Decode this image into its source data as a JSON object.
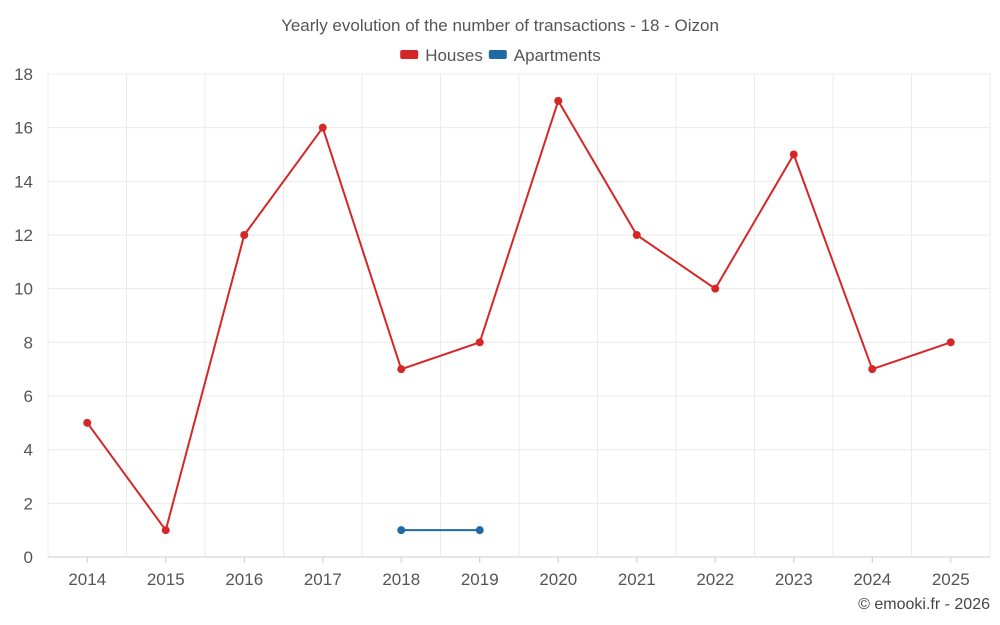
{
  "chart_data": {
    "type": "line",
    "title": "Yearly evolution of the number of transactions - 18 - Oizon",
    "xlabel": "",
    "ylabel": "",
    "categories": [
      "2014",
      "2015",
      "2016",
      "2017",
      "2018",
      "2019",
      "2020",
      "2021",
      "2022",
      "2023",
      "2024",
      "2025"
    ],
    "ylim": [
      0,
      18
    ],
    "yticks": [
      0,
      2,
      4,
      6,
      8,
      10,
      12,
      14,
      16,
      18
    ],
    "grid": true,
    "legend_position": "top-center",
    "series": [
      {
        "name": "Houses",
        "color": "#d62728",
        "values": [
          5,
          1,
          12,
          16,
          7,
          8,
          17,
          12,
          10,
          15,
          7,
          8
        ]
      },
      {
        "name": "Apartments",
        "color": "#1f6aa5",
        "values": [
          null,
          null,
          null,
          null,
          1,
          1,
          null,
          null,
          null,
          null,
          null,
          null
        ]
      }
    ]
  },
  "credit": "© emooki.fr - 2026"
}
